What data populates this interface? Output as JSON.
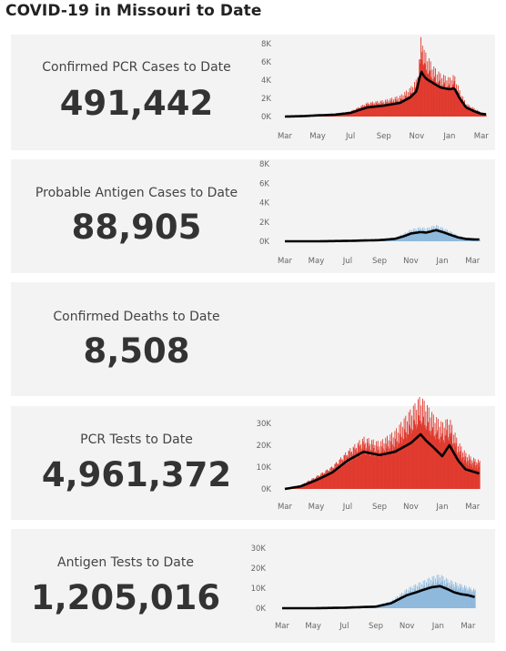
{
  "page": {
    "title": "COVID-19 in Missouri to Date"
  },
  "cards": [
    {
      "label": "Confirmed PCR Cases to Date",
      "value": "491,442"
    },
    {
      "label": "Probable Antigen Cases to Date",
      "value": "88,905"
    },
    {
      "label": "Confirmed Deaths to Date",
      "value": "8,508"
    },
    {
      "label": "PCR Tests to Date",
      "value": "4,961,372"
    },
    {
      "label": "Antigen Tests to Date",
      "value": "1,205,016"
    }
  ],
  "colors": {
    "red_bars": "#e03a2f",
    "blue_bars": "#8fb9dc",
    "average_line": "#000000",
    "card_bg": "#f3f3f3"
  },
  "chart_data": [
    {
      "type": "bar",
      "series_kind": "daily bars with moving-average line",
      "x_ticks": [
        "Mar",
        "May",
        "Jul",
        "Sep",
        "Nov",
        "Jan",
        "Mar"
      ],
      "y_ticks": [
        "0K",
        "2K",
        "4K",
        "6K",
        "8K"
      ],
      "ylim": [
        0,
        8000
      ],
      "x_dates": [
        "2020-03-01",
        "2020-04-01",
        "2020-05-01",
        "2020-06-01",
        "2020-07-01",
        "2020-08-01",
        "2020-09-01",
        "2020-10-01",
        "2020-10-20",
        "2020-11-01",
        "2020-11-05",
        "2020-11-10",
        "2020-11-15",
        "2020-11-20",
        "2020-12-01",
        "2020-12-15",
        "2021-01-01",
        "2021-01-10",
        "2021-01-20",
        "2021-02-01",
        "2021-02-15",
        "2021-03-01",
        "2021-03-10"
      ],
      "bars": [
        0,
        50,
        150,
        250,
        500,
        1300,
        1500,
        1900,
        2600,
        3400,
        4500,
        7800,
        6000,
        5600,
        4600,
        3900,
        3500,
        3800,
        2400,
        1200,
        800,
        400,
        300
      ],
      "average": [
        0,
        40,
        130,
        200,
        400,
        1000,
        1200,
        1500,
        2100,
        2800,
        4000,
        4900,
        4400,
        4100,
        3700,
        3200,
        3000,
        3100,
        2000,
        1000,
        600,
        300,
        250
      ]
    },
    {
      "type": "bar",
      "series_kind": "daily bars with moving-average line",
      "x_ticks": [
        "Mar",
        "May",
        "Jul",
        "Sep",
        "Nov",
        "Jan",
        "Mar"
      ],
      "y_ticks": [
        "0K",
        "2K",
        "4K",
        "6K",
        "8K"
      ],
      "ylim": [
        0,
        8000
      ],
      "x_dates": [
        "2020-03-01",
        "2020-05-01",
        "2020-07-01",
        "2020-09-01",
        "2020-10-01",
        "2020-10-20",
        "2020-11-01",
        "2020-11-20",
        "2020-12-01",
        "2020-12-20",
        "2021-01-05",
        "2021-01-15",
        "2021-02-01",
        "2021-02-15",
        "2021-03-01",
        "2021-03-15"
      ],
      "bars": [
        0,
        0,
        50,
        150,
        300,
        700,
        1000,
        1200,
        1100,
        1400,
        1100,
        900,
        500,
        300,
        250,
        200
      ],
      "average": [
        0,
        0,
        40,
        120,
        250,
        550,
        800,
        950,
        900,
        1150,
        900,
        700,
        400,
        250,
        200,
        180
      ]
    },
    {
      "type": "bar",
      "series_kind": "daily bars with moving-average line",
      "x_ticks": [
        "Mar",
        "May",
        "Jul",
        "Sep",
        "Nov",
        "Jan",
        "Mar"
      ],
      "y_ticks": [
        "0K",
        "10K",
        "20K",
        "30K"
      ],
      "ylim": [
        0,
        30000
      ],
      "x_dates": [
        "2020-03-01",
        "2020-04-01",
        "2020-05-01",
        "2020-06-01",
        "2020-07-01",
        "2020-08-01",
        "2020-09-01",
        "2020-10-01",
        "2020-11-01",
        "2020-11-20",
        "2020-12-01",
        "2020-12-15",
        "2021-01-01",
        "2021-01-15",
        "2021-02-01",
        "2021-02-15",
        "2021-03-01",
        "2021-03-15"
      ],
      "bars": [
        0,
        1500,
        5000,
        9000,
        15000,
        20000,
        18000,
        22000,
        30000,
        35000,
        32000,
        28000,
        25000,
        27000,
        18000,
        14000,
        12000,
        11000
      ],
      "average": [
        0,
        1200,
        4000,
        7500,
        13000,
        17000,
        15500,
        17000,
        21000,
        25000,
        22000,
        19000,
        15000,
        20000,
        13000,
        9000,
        8000,
        7000
      ]
    },
    {
      "type": "bar",
      "series_kind": "daily bars with moving-average line",
      "x_ticks": [
        "Mar",
        "May",
        "Jul",
        "Sep",
        "Nov",
        "Jan",
        "Mar"
      ],
      "y_ticks": [
        "0K",
        "10K",
        "20K",
        "30K"
      ],
      "ylim": [
        0,
        30000
      ],
      "x_dates": [
        "2020-03-01",
        "2020-05-01",
        "2020-07-01",
        "2020-09-01",
        "2020-10-01",
        "2020-10-20",
        "2020-11-01",
        "2020-11-20",
        "2020-12-01",
        "2020-12-20",
        "2021-01-05",
        "2021-01-20",
        "2021-02-01",
        "2021-02-15",
        "2021-03-01",
        "2021-03-15"
      ],
      "bars": [
        0,
        0,
        300,
        1000,
        3000,
        6000,
        8000,
        10000,
        11000,
        13000,
        14000,
        12000,
        11000,
        10000,
        9000,
        8000
      ],
      "average": [
        0,
        0,
        250,
        800,
        2500,
        5000,
        6500,
        8000,
        9000,
        10500,
        11000,
        9500,
        8000,
        7000,
        6500,
        5500
      ]
    }
  ]
}
